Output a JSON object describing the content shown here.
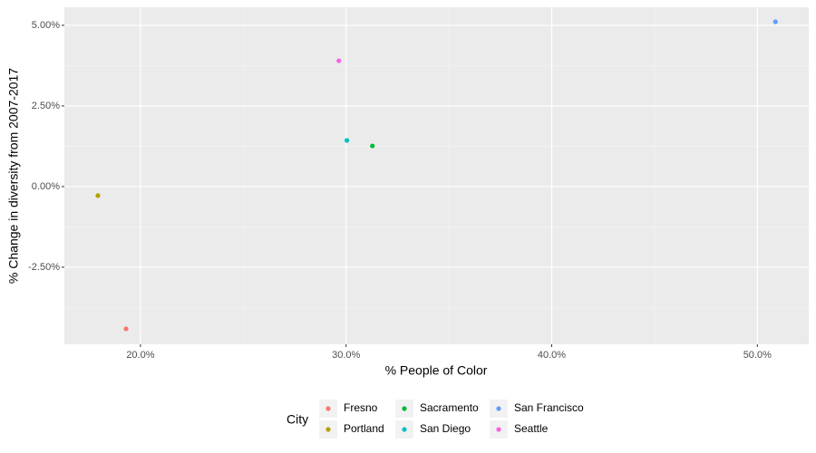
{
  "chart_data": {
    "type": "scatter",
    "x_label": "% People of Color",
    "y_label": "% Change in diversity from 2007-2017",
    "legend_title": "City",
    "legend_position": "bottom",
    "grid": true,
    "xlim": [
      16.3,
      52.5
    ],
    "ylim": [
      -4.89,
      5.56
    ],
    "xticks": [
      {
        "value": 20,
        "label": "20.0%"
      },
      {
        "value": 30,
        "label": "30.0%"
      },
      {
        "value": 40,
        "label": "40.0%"
      },
      {
        "value": 50,
        "label": "50.0%"
      }
    ],
    "yticks": [
      {
        "value": -2.5,
        "label": "-2.50%"
      },
      {
        "value": 0,
        "label": "0.00%"
      },
      {
        "value": 2.5,
        "label": "2.50%"
      },
      {
        "value": 5,
        "label": "5.00%"
      }
    ],
    "x_minor_breaks": [
      25,
      35,
      45
    ],
    "y_minor_breaks": [
      -3.75,
      -1.25,
      1.25,
      3.75
    ],
    "series": [
      {
        "name": "Fresno",
        "color": "#F8766D",
        "x": [
          19.3
        ],
        "values": [
          -4.41
        ]
      },
      {
        "name": "Portland",
        "color": "#B79F00",
        "x": [
          17.93
        ],
        "values": [
          -0.28
        ]
      },
      {
        "name": "Sacramento",
        "color": "#00BA38",
        "x": [
          31.28
        ],
        "values": [
          1.26
        ]
      },
      {
        "name": "San Diego",
        "color": "#00BFC4",
        "x": [
          30.04
        ],
        "values": [
          1.43
        ]
      },
      {
        "name": "San Francisco",
        "color": "#619CFF",
        "x": [
          50.88
        ],
        "values": [
          5.11
        ]
      },
      {
        "name": "Seattle",
        "color": "#F564E3",
        "x": [
          29.65
        ],
        "values": [
          3.9
        ]
      }
    ]
  }
}
